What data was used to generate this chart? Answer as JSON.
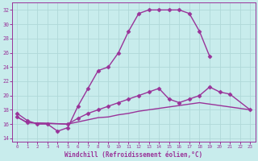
{
  "xlabel": "Windchill (Refroidissement éolien,°C)",
  "bg_color": "#c8ecec",
  "grid_color": "#b0d8d8",
  "line_color": "#993399",
  "xlim": [
    -0.5,
    23.5
  ],
  "ylim": [
    13.5,
    33
  ],
  "yticks": [
    14,
    16,
    18,
    20,
    22,
    24,
    26,
    28,
    30,
    32
  ],
  "xticks": [
    0,
    1,
    2,
    3,
    4,
    5,
    6,
    7,
    8,
    9,
    10,
    11,
    12,
    13,
    14,
    15,
    16,
    17,
    18,
    19,
    20,
    21,
    22,
    23
  ],
  "curve1_x": [
    0,
    1,
    2,
    3,
    4,
    5,
    6,
    7,
    8,
    9,
    10,
    11,
    12,
    13,
    14,
    15,
    16,
    17,
    18,
    19
  ],
  "curve1_y": [
    17.5,
    16.5,
    16.0,
    16.0,
    15.0,
    15.5,
    18.5,
    21.0,
    23.5,
    24.0,
    26.0,
    29.0,
    31.5,
    32.0,
    32.0,
    32.0,
    32.0,
    31.5,
    29.0,
    25.5
  ],
  "curve2_x": [
    0,
    1,
    5,
    6,
    7,
    8,
    9,
    10,
    11,
    12,
    13,
    14,
    15,
    16,
    17,
    18,
    19,
    20,
    21,
    23
  ],
  "curve2_y": [
    17.0,
    16.2,
    16.0,
    16.8,
    17.5,
    18.0,
    18.5,
    19.0,
    19.5,
    20.0,
    20.5,
    21.0,
    19.5,
    19.0,
    19.5,
    20.0,
    21.2,
    20.5,
    20.2,
    18.0
  ],
  "curve3_x": [
    0,
    1,
    5,
    6,
    7,
    8,
    9,
    10,
    11,
    12,
    13,
    14,
    15,
    16,
    17,
    18,
    23
  ],
  "curve3_y": [
    17.0,
    16.2,
    16.0,
    16.3,
    16.6,
    16.9,
    17.0,
    17.3,
    17.5,
    17.8,
    18.0,
    18.2,
    18.4,
    18.6,
    18.8,
    19.0,
    18.0
  ],
  "marker": "D",
  "markersize": 2.5,
  "linewidth": 1.0
}
